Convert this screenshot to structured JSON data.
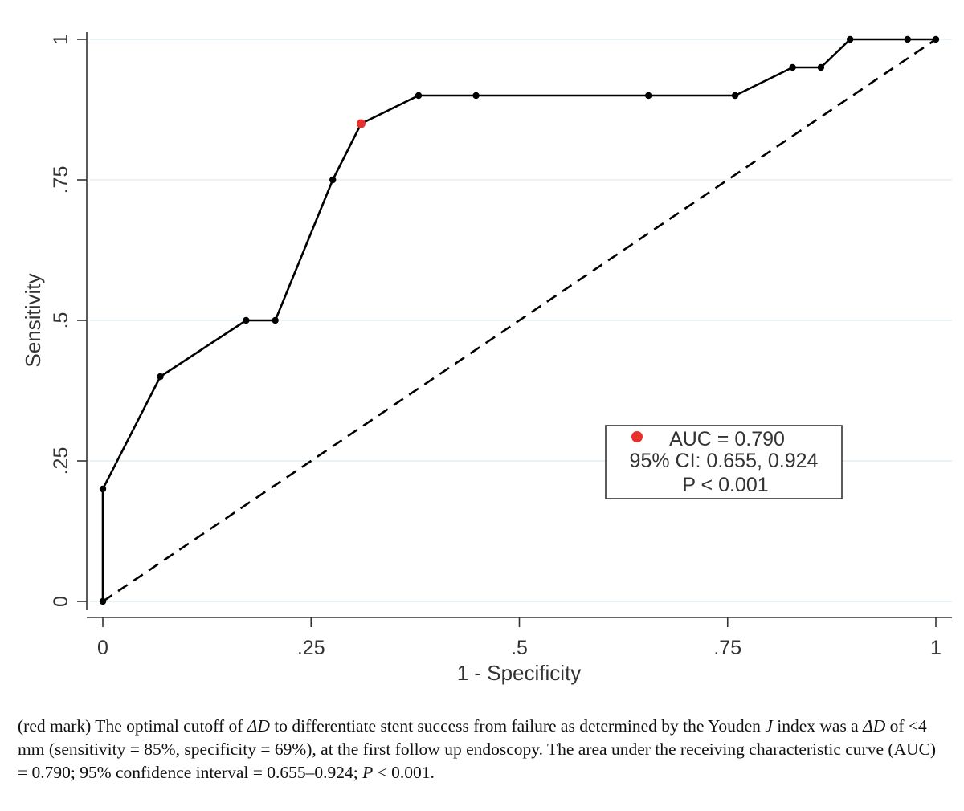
{
  "chart_data": {
    "type": "line",
    "title": "",
    "xlabel": "1 - Specificity",
    "ylabel": "Sensitivity",
    "xlim": [
      0,
      1
    ],
    "ylim": [
      0,
      1
    ],
    "grid": true,
    "x_ticks": [
      0,
      0.25,
      0.5,
      0.75,
      1
    ],
    "x_tick_labels": [
      "0",
      ".25",
      ".5",
      ".75",
      "1"
    ],
    "y_ticks": [
      0,
      0.25,
      0.5,
      0.75,
      1
    ],
    "y_tick_labels": [
      "0",
      ".25",
      ".5",
      ".75",
      "1"
    ],
    "series": [
      {
        "name": "ROC curve",
        "style": "solid-with-markers",
        "color": "#000000",
        "x": [
          0,
          0,
          0.069,
          0.172,
          0.207,
          0.276,
          0.31,
          0.379,
          0.448,
          0.655,
          0.759,
          0.828,
          0.862,
          0.897,
          0.966,
          1
        ],
        "y": [
          0,
          0.2,
          0.4,
          0.5,
          0.5,
          0.75,
          0.85,
          0.9,
          0.9,
          0.9,
          0.9,
          0.95,
          0.95,
          1,
          1,
          1
        ]
      },
      {
        "name": "Reference line",
        "style": "dashed",
        "color": "#000000",
        "x": [
          0,
          1
        ],
        "y": [
          0,
          1
        ]
      }
    ],
    "highlight_point": {
      "x": 0.31,
      "y": 0.85,
      "color": "#e8302a",
      "label": "optimal cutoff"
    },
    "legend": {
      "position": "bottom-right",
      "lines": [
        "AUC = 0.790",
        "95% CI: 0.655, 0.924",
        "P < 0.001"
      ]
    }
  },
  "caption": {
    "p1": "(red mark) The optimal cutoff of ",
    "delta1": "ΔD",
    "p2": " to differentiate stent success from failure as determined by the Youden ",
    "j": "J",
    "p3": " index was a ",
    "delta2": "ΔD",
    "p4": " of <4 mm (sensitivity = 85%, specificity = 69%), at the first follow up endoscopy. The area under the receiving characteristic curve (AUC) = 0.790; 95% confidence interval = 0.655–0.924; ",
    "p": "P",
    "p5": " < 0.001."
  }
}
